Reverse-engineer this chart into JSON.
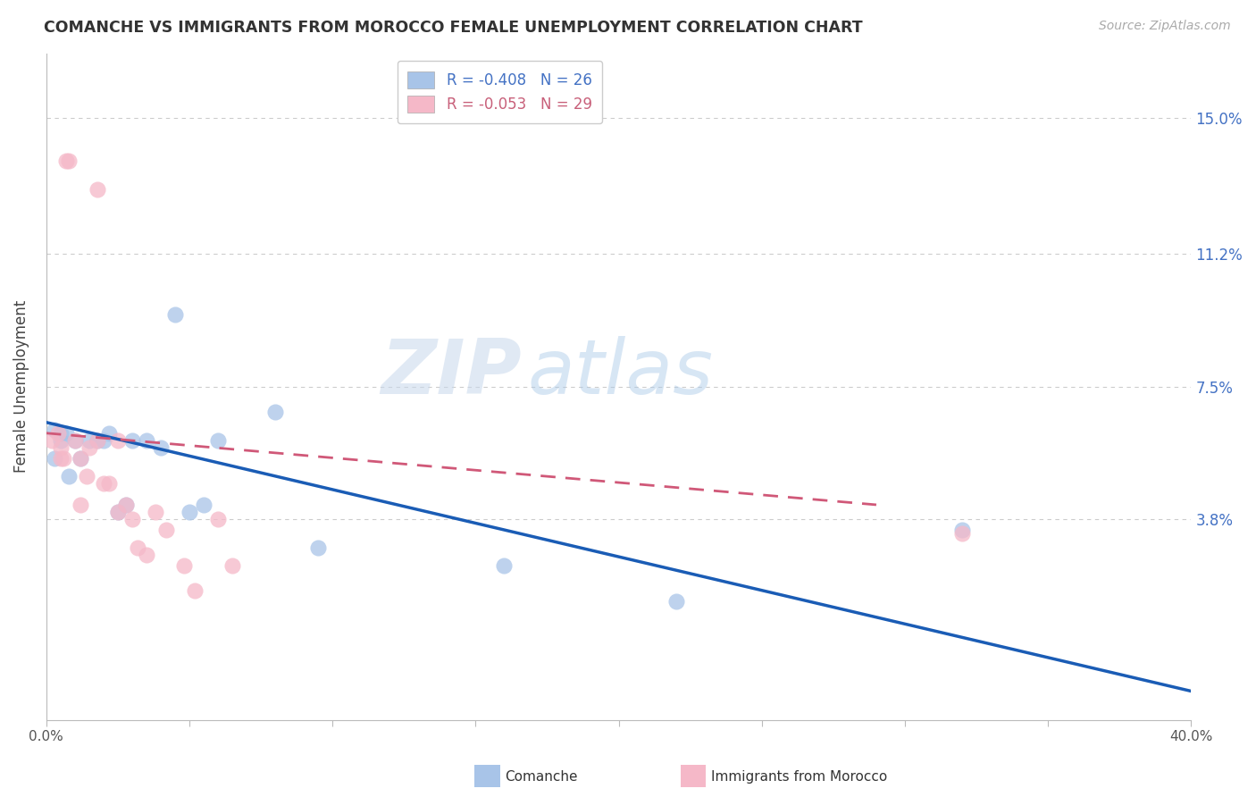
{
  "title": "COMANCHE VS IMMIGRANTS FROM MOROCCO FEMALE UNEMPLOYMENT CORRELATION CHART",
  "source": "Source: ZipAtlas.com",
  "ylabel": "Female Unemployment",
  "ytick_labels": [
    "15.0%",
    "11.2%",
    "7.5%",
    "3.8%"
  ],
  "ytick_values": [
    0.15,
    0.112,
    0.075,
    0.038
  ],
  "xlim": [
    0.0,
    0.4
  ],
  "ylim": [
    -0.018,
    0.168
  ],
  "legend_blue_R": "-0.408",
  "legend_blue_N": "26",
  "legend_pink_R": "-0.053",
  "legend_pink_N": "29",
  "blue_color": "#a8c4e8",
  "pink_color": "#f5b8c8",
  "blue_line_color": "#1a5cb5",
  "pink_line_color": "#d05878",
  "watermark_zip": "ZIP",
  "watermark_atlas": "atlas",
  "blue_scatter_x": [
    0.003,
    0.003,
    0.005,
    0.005,
    0.007,
    0.008,
    0.01,
    0.012,
    0.015,
    0.018,
    0.02,
    0.022,
    0.025,
    0.028,
    0.03,
    0.035,
    0.04,
    0.045,
    0.05,
    0.055,
    0.06,
    0.08,
    0.095,
    0.16,
    0.22,
    0.32
  ],
  "blue_scatter_y": [
    0.063,
    0.055,
    0.062,
    0.06,
    0.062,
    0.05,
    0.06,
    0.055,
    0.06,
    0.06,
    0.06,
    0.062,
    0.04,
    0.042,
    0.06,
    0.06,
    0.058,
    0.095,
    0.04,
    0.042,
    0.06,
    0.068,
    0.03,
    0.025,
    0.015,
    0.035
  ],
  "pink_scatter_x": [
    0.002,
    0.004,
    0.005,
    0.005,
    0.006,
    0.007,
    0.008,
    0.01,
    0.012,
    0.012,
    0.014,
    0.015,
    0.018,
    0.018,
    0.02,
    0.022,
    0.025,
    0.025,
    0.028,
    0.03,
    0.032,
    0.035,
    0.038,
    0.042,
    0.048,
    0.052,
    0.06,
    0.065,
    0.32
  ],
  "pink_scatter_y": [
    0.06,
    0.062,
    0.055,
    0.058,
    0.055,
    0.138,
    0.138,
    0.06,
    0.055,
    0.042,
    0.05,
    0.058,
    0.13,
    0.06,
    0.048,
    0.048,
    0.06,
    0.04,
    0.042,
    0.038,
    0.03,
    0.028,
    0.04,
    0.035,
    0.025,
    0.018,
    0.038,
    0.025,
    0.034
  ],
  "blue_line_x": [
    0.0,
    0.4
  ],
  "blue_line_y": [
    0.065,
    -0.01
  ],
  "pink_line_x": [
    0.0,
    0.29
  ],
  "pink_line_y": [
    0.062,
    0.042
  ],
  "background_color": "#ffffff",
  "grid_color": "#cccccc"
}
